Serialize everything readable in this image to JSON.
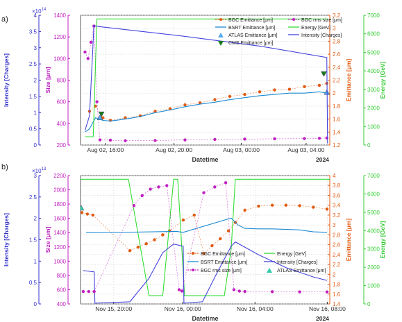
{
  "chart_data": [
    {
      "type": "line",
      "panel_label": "a)",
      "x_axis": {
        "label": "Datetime",
        "year_label": "2024",
        "ticks": [
          "Aug 02, 16:00",
          "Aug 02, 20:00",
          "Aug 03, 00:00",
          "Aug 03, 04:00"
        ],
        "range_hours": [
          13.0,
          29.7
        ]
      },
      "axes": {
        "intensity": {
          "label": "Intensity [Charges]",
          "exponent": "×10",
          "exponent_power": "14",
          "ticks": [
            "0",
            "0.5",
            "1",
            "1.5",
            "2",
            "2.5",
            "3",
            "3.5",
            "4"
          ],
          "ylim": [
            0,
            4.0
          ],
          "color": "#3333cc"
        },
        "size": {
          "label": "Size [μm]",
          "ticks": [
            "200",
            "400",
            "600",
            "800",
            "1000",
            "1200",
            "1400"
          ],
          "ylim": [
            200,
            1400
          ],
          "color": "#c020c0"
        },
        "emittance": {
          "label": "Emittance [μm]",
          "ticks": [
            "1.2",
            "1.4",
            "1.6",
            "1.8",
            "2",
            "2.2",
            "2.4",
            "2.6",
            "2.8",
            "3",
            "3.2"
          ],
          "ylim": [
            1.2,
            3.2
          ],
          "color": "#e05a10"
        },
        "energy": {
          "label": "Energy [GeV]",
          "ticks": [
            "0",
            "1000",
            "2000",
            "3000",
            "4000",
            "5000",
            "6000",
            "7000"
          ],
          "ylim": [
            0,
            7000
          ],
          "color": "#33cc33"
        }
      },
      "legend": {
        "position": "top-right",
        "entries": [
          "BGC Emittance [μm]",
          "BGC rms size [μm]",
          "BSRT Emittance [μm]",
          "Energy [GeV]",
          "ATLAS Emittance [μm]",
          "Intensity [Charges]",
          "CMS Emittance [μm]"
        ]
      },
      "series": [
        {
          "name": "BGC Emittance [μm]",
          "axis": "emittance",
          "color": "#e05a10",
          "marker": "dot",
          "x": [
            13.6,
            14.0,
            14.5,
            15.0,
            16.0,
            17.0,
            18.0,
            19.0,
            20.0,
            21.0,
            22.0,
            23.0,
            24.0,
            25.0,
            26.0,
            27.0,
            28.0,
            29.0,
            29.5
          ],
          "y": [
            1.72,
            1.8,
            1.62,
            1.58,
            1.62,
            1.65,
            1.72,
            1.76,
            1.82,
            1.85,
            1.9,
            1.95,
            1.98,
            2.02,
            2.05,
            2.06,
            2.1,
            2.12,
            2.15
          ]
        },
        {
          "name": "BGC rms size [μm]",
          "axis": "size",
          "color": "#c020c0",
          "marker": "dot",
          "x": [
            13.3,
            13.5,
            13.7,
            13.9,
            14.1,
            14.3,
            15.0,
            16.0,
            18.0,
            20.0,
            22.0,
            24.0,
            26.0,
            28.0,
            29.0,
            29.5
          ],
          "y": [
            1060,
            1000,
            1150,
            1300,
            600,
            248,
            245,
            240,
            242,
            248,
            252,
            255,
            258,
            260,
            262,
            265
          ]
        },
        {
          "name": "BSRT Emittance [μm]",
          "axis": "emittance",
          "color": "#1a8ad4",
          "marker": "none",
          "x": [
            13.3,
            13.6,
            14.0,
            14.5,
            15.0,
            16.0,
            17.0,
            18.0,
            19.0,
            20.0,
            21.0,
            22.0,
            23.0,
            24.0,
            25.0,
            26.0,
            27.0,
            28.0,
            29.0,
            29.5
          ],
          "y": [
            1.4,
            1.45,
            1.62,
            1.58,
            1.57,
            1.6,
            1.64,
            1.7,
            1.74,
            1.79,
            1.83,
            1.86,
            1.9,
            1.93,
            1.96,
            1.98,
            2.0,
            2.0,
            2.02,
            2.0
          ]
        },
        {
          "name": "Energy [GeV]",
          "axis": "energy",
          "color": "#33dd33",
          "marker": "none",
          "x": [
            13.3,
            13.85,
            14.1,
            14.35,
            29.6
          ],
          "y": [
            450,
            450,
            6800,
            6800,
            6800
          ]
        },
        {
          "name": "ATLAS Emittance [μm]",
          "axis": "emittance",
          "color": "#55aaee",
          "marker": "triangle-up",
          "x": [
            14.3,
            29.5
          ],
          "y": [
            1.62,
            2.01
          ]
        },
        {
          "name": "Intensity [Charges]",
          "axis": "intensity",
          "color": "#4444dd",
          "marker": "none",
          "x": [
            13.3,
            13.6,
            13.9,
            14.3,
            20.0,
            25.0,
            29.5,
            29.55
          ],
          "y": [
            0.45,
            0.9,
            3.68,
            3.65,
            3.35,
            3.05,
            2.7,
            0.05
          ]
        },
        {
          "name": "CMS Emittance [μm]",
          "axis": "emittance",
          "color": "#1a7a1a",
          "marker": "triangle-down",
          "x": [
            14.4,
            29.3
          ],
          "y": [
            1.68,
            2.3
          ]
        }
      ]
    },
    {
      "type": "line",
      "panel_label": "b)",
      "x_axis": {
        "label": "Datetime",
        "year_label": "2024",
        "ticks": [
          "Nov 15, 20:00",
          "Nov 16, 00:00",
          "Nov 16, 04:00",
          "Nov 16, 08:00"
        ],
        "range_hours": [
          14.0,
          32.2
        ]
      },
      "axes": {
        "intensity": {
          "label": "Intensity [Charges]",
          "exponent": "×10",
          "exponent_power": "13",
          "ticks": [
            "0",
            "0.5",
            "1",
            "1.5",
            "2",
            "2.5",
            "3"
          ],
          "ylim": [
            0,
            3.0
          ],
          "color": "#3333cc"
        },
        "size": {
          "label": "Size [μm]",
          "ticks": [
            "400",
            "600",
            "800",
            "1000",
            "1200",
            "1400",
            "1600",
            "1800",
            "2000",
            "2200"
          ],
          "ylim": [
            400,
            2200
          ],
          "color": "#c020c0"
        },
        "emittance": {
          "label": "Emittance [μm]",
          "ticks": [
            "1.4",
            "1.6",
            "1.8",
            "2",
            "2.2",
            "2.4",
            "2.6",
            "2.8",
            "3",
            "3.2",
            "3.4",
            "3.6",
            "3.8",
            "4"
          ],
          "ylim": [
            1.4,
            4.0
          ],
          "color": "#e05a10"
        },
        "energy": {
          "label": "Energy [GeV]",
          "ticks": [
            "0",
            "1000",
            "2000",
            "3000",
            "4000",
            "5000",
            "6000",
            "7000"
          ],
          "ylim": [
            0,
            7000
          ],
          "color": "#33cc33"
        }
      },
      "legend": {
        "position": "bottom-right",
        "entries": [
          "BGC Emittance [μm]",
          "Energy [GeV]",
          "BSRT Emittance [μm]",
          "Intensity [Charges]",
          "BGC rms size [μm]",
          "ATLAS Emittance [μm]"
        ]
      },
      "series": [
        {
          "name": "BGC Emittance [μm]",
          "axis": "emittance",
          "color": "#e05a10",
          "marker": "dot",
          "x": [
            14.1,
            14.5,
            14.9,
            17.6,
            18.2,
            18.8,
            19.4,
            20.0,
            20.5,
            21.5,
            22.3,
            23.0,
            23.6,
            24.2,
            24.8,
            25.3,
            26.0,
            27.0,
            28.0,
            29.0,
            30.0,
            31.0,
            32.0
          ],
          "y": [
            3.25,
            3.22,
            3.2,
            2.48,
            2.55,
            2.62,
            2.7,
            2.8,
            2.88,
            3.1,
            3.2,
            2.42,
            2.58,
            2.72,
            2.88,
            3.05,
            3.3,
            3.38,
            3.4,
            3.4,
            3.39,
            3.36,
            3.32
          ]
        },
        {
          "name": "Energy [GeV]",
          "axis": "energy",
          "color": "#33dd33",
          "marker": "none",
          "x": [
            14.0,
            17.5,
            19.0,
            20.0,
            20.8,
            21.1,
            21.6,
            23.0,
            24.5,
            25.0,
            25.3,
            26.0,
            32.2
          ],
          "y": [
            6800,
            6800,
            450,
            450,
            6800,
            6800,
            450,
            450,
            450,
            3000,
            6800,
            6800,
            6800
          ]
        },
        {
          "name": "BSRT Emittance [μm]",
          "axis": "emittance",
          "color": "#1a8ad4",
          "marker": "none",
          "x": [
            14.4,
            15.0,
            21.0,
            21.5,
            25.0,
            25.5,
            26.0,
            27.0,
            28.0,
            29.0,
            30.0,
            31.0,
            32.0
          ],
          "y": [
            2.85,
            2.84,
            2.87,
            2.85,
            3.14,
            3.0,
            2.93,
            2.92,
            2.92,
            2.91,
            2.9,
            2.86,
            2.85
          ]
        },
        {
          "name": "Intensity [Charges]",
          "axis": "intensity",
          "color": "#4444dd",
          "marker": "none",
          "x": [
            14.2,
            15.0,
            15.05,
            17.6,
            19.0,
            20.0,
            20.8,
            21.5,
            21.55,
            22.9,
            24.0,
            25.0,
            25.3,
            27.0,
            29.0,
            31.0,
            32.0
          ],
          "y": [
            0.78,
            0.75,
            0.02,
            0.05,
            0.6,
            1.2,
            1.4,
            1.35,
            0.02,
            0.05,
            0.75,
            1.35,
            1.45,
            1.15,
            0.85,
            0.63,
            0.55
          ]
        },
        {
          "name": "BGC rms size [μm]",
          "axis": "size",
          "color": "#c020c0",
          "marker": "dot",
          "x": [
            14.2,
            14.6,
            15.0,
            17.9,
            18.5,
            19.1,
            19.7,
            20.3,
            21.2,
            21.4,
            23.0,
            23.8,
            24.6,
            25.2,
            25.6,
            26.0,
            28.0,
            30.0,
            32.0
          ],
          "y": [
            575,
            575,
            575,
            1780,
            1920,
            2010,
            2040,
            2060,
            600,
            580,
            1960,
            2040,
            2100,
            600,
            580,
            575,
            572,
            570,
            568
          ]
        },
        {
          "name": "ATLAS Emittance [μm]",
          "axis": "emittance",
          "color": "#33ccaa",
          "marker": "triangle-up",
          "x": [
            14.05
          ],
          "y": [
            3.34
          ]
        }
      ]
    }
  ]
}
